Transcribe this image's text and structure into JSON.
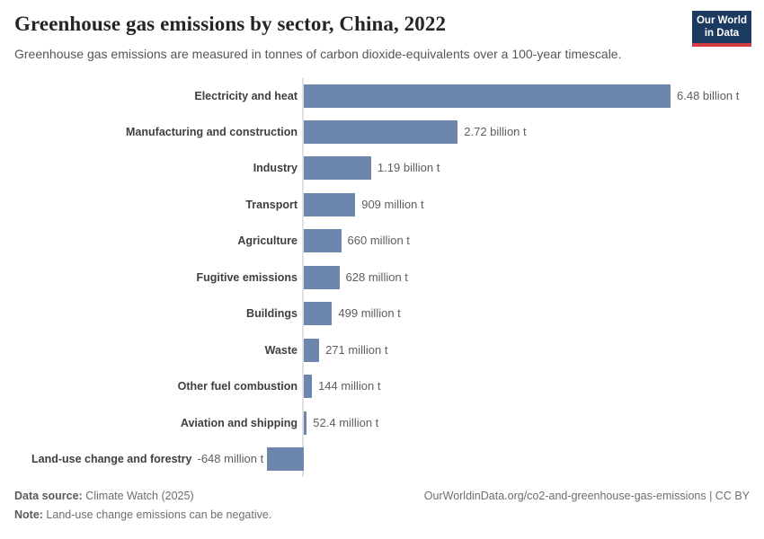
{
  "header": {
    "title": "Greenhouse gas emissions by sector, China, 2022",
    "subtitle": "Greenhouse gas emissions are measured in tonnes of carbon dioxide-equivalents over a 100-year timescale.",
    "logo": {
      "line1": "Our World",
      "line2": "in Data"
    }
  },
  "chart_data": {
    "type": "bar",
    "orientation": "horizontal",
    "title": "Greenhouse gas emissions by sector, China, 2022",
    "unit": "tonnes of carbon dioxide-equivalents (100-year timescale)",
    "categories": [
      "Electricity and heat",
      "Manufacturing and construction",
      "Industry",
      "Transport",
      "Agriculture",
      "Fugitive emissions",
      "Buildings",
      "Waste",
      "Other fuel combustion",
      "Aviation and shipping",
      "Land-use change and forestry"
    ],
    "values_billion_t": [
      6.48,
      2.72,
      1.19,
      0.909,
      0.66,
      0.628,
      0.499,
      0.271,
      0.144,
      0.0524,
      -0.648
    ],
    "value_labels": [
      "6.48 billion t",
      "2.72 billion t",
      "1.19 billion t",
      "909 million t",
      "660 million t",
      "628 million t",
      "499 million t",
      "271 million t",
      "144 million t",
      "52.4 million t",
      "-648 million t"
    ],
    "xlim_billion_t": [
      -0.8,
      6.6
    ],
    "grid": false,
    "legend": false,
    "bar_color": "#6d86ad",
    "axis_line_color": "#e0e0e0"
  },
  "footer": {
    "data_source_label": "Data source:",
    "data_source_value": " Climate Watch (2025)",
    "note_label": "Note:",
    "note_value": " Land-use change emissions can be negative.",
    "rights": "OurWorldinData.org/co2-and-greenhouse-gas-emissions | CC BY"
  },
  "colors": {
    "logo_background": "#1a3a5f",
    "logo_accent": "#d13d43",
    "title_text": "#252525",
    "subtitle_text": "#555555",
    "category_label_text": "#3f3f3f",
    "value_label_text": "#5e5e5e"
  }
}
